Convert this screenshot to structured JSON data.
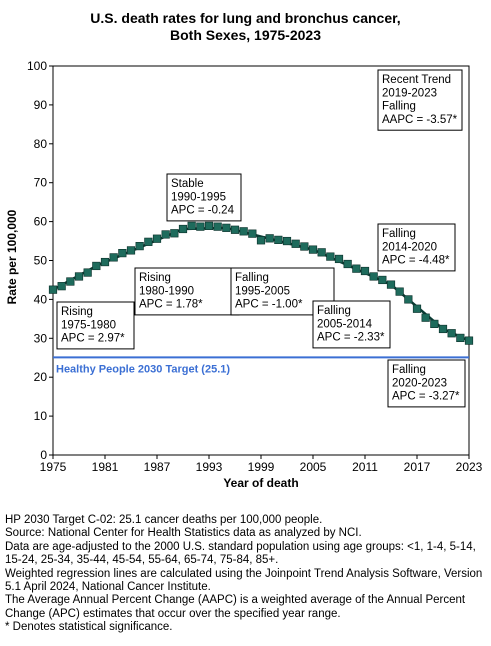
{
  "chart_data": {
    "type": "line",
    "title_line1": "U.S. death rates for lung and bronchus cancer,",
    "title_line2": "Both Sexes,  1975-2023",
    "xlabel": "Year of death",
    "ylabel": "Rate per 100,000",
    "xlim": [
      1975,
      2023
    ],
    "ylim": [
      0,
      100
    ],
    "x_ticks": [
      "1975",
      "1981",
      "1987",
      "1993",
      "1999",
      "2005",
      "2011",
      "2017",
      "2023"
    ],
    "y_ticks": [
      "0",
      "10",
      "20",
      "30",
      "40",
      "50",
      "60",
      "70",
      "80",
      "90",
      "100"
    ],
    "grid": false,
    "point_color": "#1e6b5c",
    "line_color": "#0b3d35",
    "series": [
      {
        "x": [
          1975,
          1976,
          1977,
          1978,
          1979,
          1980,
          1981,
          1982,
          1983,
          1984,
          1985,
          1986,
          1987,
          1988,
          1989,
          1990,
          1991,
          1992,
          1993,
          1994,
          1995,
          1996,
          1997,
          1998,
          1999,
          2000,
          2001,
          2002,
          2003,
          2004,
          2005,
          2006,
          2007,
          2008,
          2009,
          2010,
          2011,
          2012,
          2013,
          2014,
          2015,
          2016,
          2017,
          2018,
          2019,
          2020,
          2021,
          2022,
          2023
        ],
        "y": [
          42.5,
          43.4,
          44.6,
          45.9,
          46.9,
          48.6,
          49.6,
          50.8,
          51.9,
          52.6,
          53.7,
          54.8,
          55.6,
          56.7,
          57.0,
          58.1,
          58.9,
          58.7,
          58.9,
          58.7,
          58.4,
          57.9,
          57.5,
          56.9,
          55.2,
          55.7,
          55.3,
          55.0,
          54.3,
          53.6,
          52.8,
          52.1,
          51.0,
          50.4,
          49.1,
          47.9,
          47.3,
          45.9,
          45.0,
          43.8,
          42.0,
          40.0,
          37.6,
          35.3,
          33.7,
          32.4,
          31.3,
          30.1,
          29.4
        ]
      }
    ],
    "target": {
      "value": 25.1,
      "label": "Healthy People 2030 Target (25.1)",
      "color": "#3b6fd4"
    },
    "annotations": [
      {
        "lines": [
          "Rising",
          "1975-1980",
          "APC =  2.97*"
        ]
      },
      {
        "lines": [
          "Rising",
          "1980-1990",
          "APC =  1.78*"
        ]
      },
      {
        "lines": [
          "Stable",
          "1990-1995",
          "APC = -0.24"
        ]
      },
      {
        "lines": [
          "Falling",
          "1995-2005",
          "APC = -1.00*"
        ]
      },
      {
        "lines": [
          "Falling",
          "2005-2014",
          "APC = -2.33*"
        ]
      },
      {
        "lines": [
          "Falling",
          "2014-2020",
          "APC = -4.48*"
        ]
      },
      {
        "lines": [
          "Falling",
          "2020-2023",
          "APC = -3.27*"
        ]
      },
      {
        "lines": [
          "Recent Trend",
          "2019-2023",
          "Falling",
          "AAPC = -3.57*"
        ]
      }
    ]
  },
  "notes": [
    "HP 2030 Target C-02: 25.1 cancer deaths per 100,000 people.",
    "Source: National Center for Health Statistics data as analyzed by NCI.",
    "Data are age-adjusted to the 2000 U.S. standard population using age groups: <1, 1-4, 5-14, 15-24, 25-34, 35-44, 45-54, 55-64, 65-74, 75-84, 85+.",
    "Weighted regression lines are calculated using the Joinpoint Trend Analysis Software, Version 5.1 April 2024, National Cancer Institute.",
    "The Average Annual Percent Change (AAPC) is a weighted average of the Annual Percent Change (APC) estimates that occur over the specified year range.",
    "* Denotes statistical significance."
  ]
}
